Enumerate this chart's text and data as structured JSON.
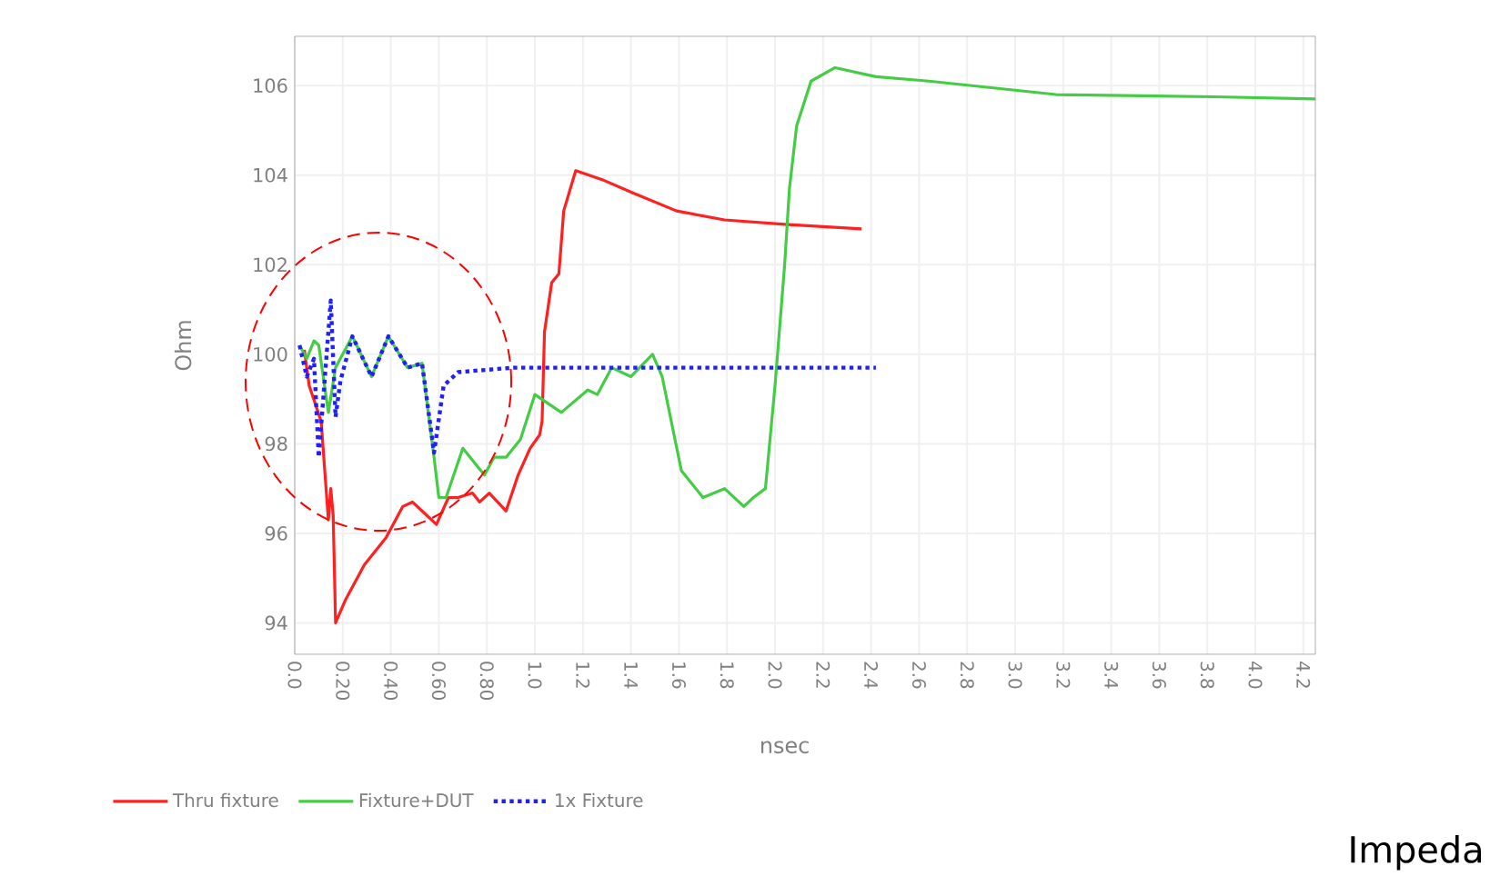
{
  "chart_data": {
    "type": "line",
    "xlabel": "nsec",
    "ylabel": "Ohm",
    "xlim": [
      0,
      4.25
    ],
    "ylim": [
      93.3,
      107.1
    ],
    "xticks": [
      {
        "value": 0,
        "label": "0.0"
      },
      {
        "value": 0.2,
        "label": "0.20"
      },
      {
        "value": 0.4,
        "label": "0.40"
      },
      {
        "value": 0.6,
        "label": "0.60"
      },
      {
        "value": 0.8,
        "label": "0.80"
      },
      {
        "value": 1.0,
        "label": "1.0"
      },
      1.2,
      1.4,
      1.6,
      1.8,
      {
        "value": 2.0,
        "label": "2.0"
      },
      2.2,
      2.4,
      2.6,
      2.8,
      {
        "value": 3.0,
        "label": "3.0"
      },
      3.2,
      3.4,
      3.6,
      3.8,
      {
        "value": 4.0,
        "label": "4.0"
      },
      4.2
    ],
    "yticks": [
      94,
      96,
      98,
      100,
      102,
      104,
      106
    ],
    "grid": true,
    "legend": "bottom",
    "annotations": [
      "Impeda"
    ],
    "series": [
      {
        "name": "Thru fixture",
        "color": "#ff2020",
        "line_style": "solid",
        "x": [
          0.04,
          0.06,
          0.11,
          0.14,
          0.15,
          0.16,
          0.17,
          0.21,
          0.29,
          0.38,
          0.45,
          0.49,
          0.53,
          0.59,
          0.64,
          0.68,
          0.74,
          0.77,
          0.81,
          0.88,
          0.93,
          0.98,
          1.02,
          1.03,
          1.04,
          1.07,
          1.1,
          1.12,
          1.17,
          1.28,
          1.41,
          1.59,
          1.79,
          2.04,
          2.36
        ],
        "values": [
          100.1,
          99.3,
          98.5,
          96.3,
          97.0,
          96.4,
          94.0,
          94.5,
          95.3,
          95.9,
          96.6,
          96.7,
          96.5,
          96.2,
          96.8,
          96.8,
          96.9,
          96.7,
          96.9,
          96.5,
          97.3,
          97.9,
          98.2,
          98.5,
          100.5,
          101.6,
          101.8,
          103.2,
          104.1,
          103.9,
          103.6,
          103.2,
          103.0,
          102.9,
          102.8
        ]
      },
      {
        "name": "Fixture+DUT",
        "color": "#44cc44",
        "line_style": "solid",
        "x": [
          0.02,
          0.05,
          0.08,
          0.1,
          0.14,
          0.17,
          0.24,
          0.32,
          0.39,
          0.47,
          0.53,
          0.58,
          0.6,
          0.63,
          0.7,
          0.79,
          0.83,
          0.88,
          0.94,
          1.0,
          1.11,
          1.22,
          1.26,
          1.32,
          1.4,
          1.49,
          1.53,
          1.61,
          1.7,
          1.79,
          1.87,
          1.91,
          1.96,
          2.0,
          2.04,
          2.06,
          2.09,
          2.15,
          2.25,
          2.42,
          2.64,
          3.17,
          3.83,
          4.25
        ],
        "values": [
          100.2,
          99.9,
          100.3,
          100.2,
          98.7,
          99.7,
          100.4,
          99.5,
          100.4,
          99.7,
          99.8,
          97.7,
          96.8,
          96.8,
          97.9,
          97.3,
          97.7,
          97.7,
          98.1,
          99.1,
          98.7,
          99.2,
          99.1,
          99.7,
          99.5,
          100.0,
          99.5,
          97.4,
          96.8,
          97.0,
          96.6,
          96.8,
          97.0,
          99.3,
          102.0,
          103.7,
          105.1,
          106.1,
          106.4,
          106.2,
          106.1,
          105.8,
          105.75,
          105.7
        ]
      },
      {
        "name": "1x Fixture",
        "color": "#2020ff",
        "line_style": "dotted",
        "x": [
          0.02,
          0.05,
          0.08,
          0.1,
          0.12,
          0.15,
          0.17,
          0.19,
          0.24,
          0.32,
          0.39,
          0.47,
          0.53,
          0.58,
          0.62,
          0.68,
          0.91,
          2.42
        ],
        "values": [
          100.2,
          99.5,
          99.9,
          97.7,
          99.1,
          101.2,
          98.6,
          99.4,
          100.4,
          99.5,
          100.4,
          99.7,
          99.8,
          97.8,
          99.3,
          99.6,
          99.7,
          99.7
        ]
      }
    ]
  }
}
